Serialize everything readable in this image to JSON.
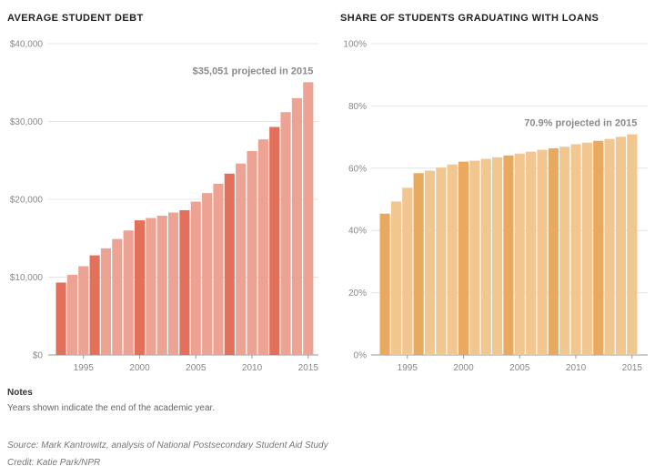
{
  "chart_data": [
    {
      "type": "bar",
      "title": "AVERAGE STUDENT DEBT",
      "x": [
        1993,
        1994,
        1995,
        1996,
        1997,
        1998,
        1999,
        2000,
        2001,
        2002,
        2003,
        2004,
        2005,
        2006,
        2007,
        2008,
        2009,
        2010,
        2011,
        2012,
        2013,
        2014,
        2015
      ],
      "values": [
        9300,
        10300,
        11400,
        12800,
        13700,
        14900,
        16000,
        17300,
        17600,
        17900,
        18300,
        18600,
        19700,
        20800,
        22000,
        23300,
        24600,
        26200,
        27700,
        29300,
        31200,
        33000,
        35051
      ],
      "highlight_years": [
        1993,
        1996,
        2000,
        2004,
        2008,
        2012
      ],
      "ylim": [
        0,
        40000
      ],
      "yticks": [
        "$0",
        "$10,000",
        "$20,000",
        "$30,000",
        "$40,000"
      ],
      "xticks": [
        "1995",
        "2000",
        "2005",
        "2010",
        "2015"
      ],
      "annotation": "$35,051 projected in 2015",
      "xlabel": "",
      "ylabel": "",
      "grid": true,
      "colors": {
        "bar": "#eca393",
        "highlight": "#e3705a"
      }
    },
    {
      "type": "bar",
      "title": "SHARE OF STUDENTS GRADUATING WITH LOANS",
      "x": [
        1993,
        1994,
        1995,
        1996,
        1997,
        1998,
        1999,
        2000,
        2001,
        2002,
        2003,
        2004,
        2005,
        2006,
        2007,
        2008,
        2009,
        2010,
        2011,
        2012,
        2013,
        2014,
        2015
      ],
      "values": [
        45.4,
        49.3,
        53.7,
        58.4,
        59.2,
        60.2,
        61.2,
        62.1,
        62.4,
        63.0,
        63.5,
        64.1,
        64.7,
        65.3,
        65.9,
        66.4,
        66.9,
        67.7,
        68.2,
        68.8,
        69.4,
        70.1,
        70.9
      ],
      "highlight_years": [
        1993,
        1996,
        2000,
        2004,
        2008,
        2012
      ],
      "ylim": [
        0,
        100
      ],
      "yticks": [
        "0%",
        "20%",
        "40%",
        "60%",
        "80%",
        "100%"
      ],
      "xticks": [
        "1995",
        "2000",
        "2005",
        "2010",
        "2015"
      ],
      "annotation": "70.9% projected in 2015",
      "xlabel": "",
      "ylabel": "",
      "grid": true,
      "colors": {
        "bar": "#f2c68f",
        "highlight": "#e9a95e"
      }
    }
  ],
  "notes": {
    "heading": "Notes",
    "text": "Years shown indicate the end of the academic year."
  },
  "source": "Source: Mark Kantrowitz, analysis of National Postsecondary Student Aid Study",
  "credit": "Credit: Katie Park/NPR"
}
